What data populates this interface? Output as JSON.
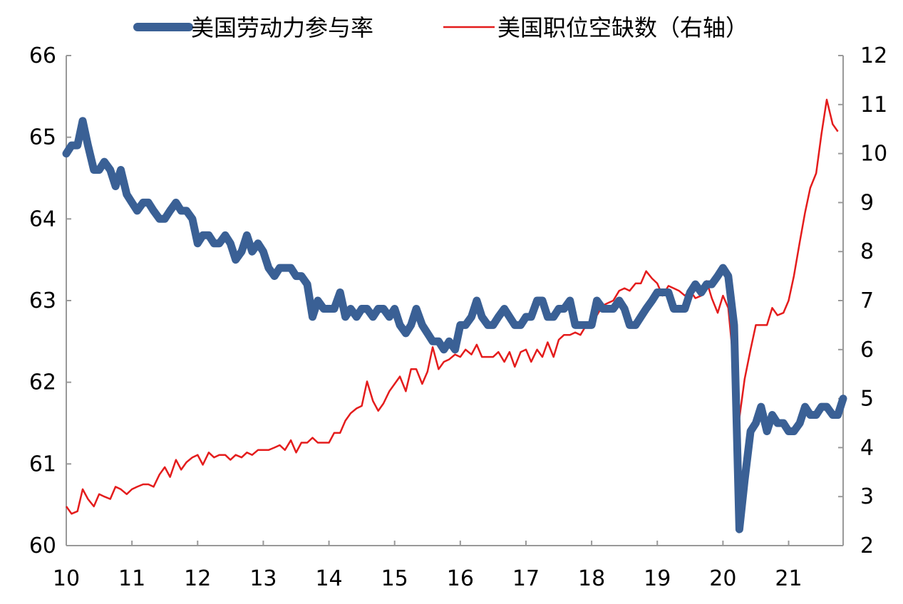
{
  "chart_data": {
    "type": "line",
    "title": "",
    "legend": {
      "position": "top"
    },
    "x_axis": {
      "range": [
        10,
        21.83
      ],
      "ticks": [
        "10",
        "11",
        "12",
        "13",
        "14",
        "15",
        "16",
        "17",
        "18",
        "19",
        "20",
        "21"
      ]
    },
    "y_left": {
      "range": [
        60,
        66
      ],
      "ticks": [
        "60",
        "61",
        "62",
        "63",
        "64",
        "65",
        "66"
      ]
    },
    "y_right": {
      "range": [
        2,
        12
      ],
      "ticks": [
        "2",
        "3",
        "4",
        "5",
        "6",
        "7",
        "8",
        "9",
        "10",
        "11",
        "12"
      ]
    },
    "grid": false,
    "series": [
      {
        "name": "美国劳动力参与率",
        "axis": "left",
        "color": "#3A6095",
        "points": [
          [
            10.0,
            64.8
          ],
          [
            10.08,
            64.9
          ],
          [
            10.17,
            64.9
          ],
          [
            10.25,
            65.2
          ],
          [
            10.33,
            64.9
          ],
          [
            10.42,
            64.6
          ],
          [
            10.5,
            64.6
          ],
          [
            10.58,
            64.7
          ],
          [
            10.67,
            64.6
          ],
          [
            10.75,
            64.4
          ],
          [
            10.83,
            64.6
          ],
          [
            10.92,
            64.3
          ],
          [
            11.0,
            64.2
          ],
          [
            11.08,
            64.1
          ],
          [
            11.17,
            64.2
          ],
          [
            11.25,
            64.2
          ],
          [
            11.33,
            64.1
          ],
          [
            11.42,
            64.0
          ],
          [
            11.5,
            64.0
          ],
          [
            11.58,
            64.1
          ],
          [
            11.67,
            64.2
          ],
          [
            11.75,
            64.1
          ],
          [
            11.83,
            64.1
          ],
          [
            11.92,
            64.0
          ],
          [
            12.0,
            63.7
          ],
          [
            12.08,
            63.8
          ],
          [
            12.17,
            63.8
          ],
          [
            12.25,
            63.7
          ],
          [
            12.33,
            63.7
          ],
          [
            12.42,
            63.8
          ],
          [
            12.5,
            63.7
          ],
          [
            12.58,
            63.5
          ],
          [
            12.67,
            63.6
          ],
          [
            12.75,
            63.8
          ],
          [
            12.83,
            63.6
          ],
          [
            12.92,
            63.7
          ],
          [
            13.0,
            63.6
          ],
          [
            13.08,
            63.4
          ],
          [
            13.17,
            63.3
          ],
          [
            13.25,
            63.4
          ],
          [
            13.33,
            63.4
          ],
          [
            13.42,
            63.4
          ],
          [
            13.5,
            63.3
          ],
          [
            13.58,
            63.3
          ],
          [
            13.67,
            63.2
          ],
          [
            13.75,
            62.8
          ],
          [
            13.83,
            63.0
          ],
          [
            13.92,
            62.9
          ],
          [
            14.0,
            62.9
          ],
          [
            14.08,
            62.9
          ],
          [
            14.17,
            63.1
          ],
          [
            14.25,
            62.8
          ],
          [
            14.33,
            62.9
          ],
          [
            14.42,
            62.8
          ],
          [
            14.5,
            62.9
          ],
          [
            14.58,
            62.9
          ],
          [
            14.67,
            62.8
          ],
          [
            14.75,
            62.9
          ],
          [
            14.83,
            62.9
          ],
          [
            14.92,
            62.8
          ],
          [
            15.0,
            62.9
          ],
          [
            15.08,
            62.7
          ],
          [
            15.17,
            62.6
          ],
          [
            15.25,
            62.7
          ],
          [
            15.33,
            62.9
          ],
          [
            15.42,
            62.7
          ],
          [
            15.5,
            62.6
          ],
          [
            15.58,
            62.5
          ],
          [
            15.67,
            62.5
          ],
          [
            15.75,
            62.4
          ],
          [
            15.83,
            62.5
          ],
          [
            15.92,
            62.4
          ],
          [
            16.0,
            62.7
          ],
          [
            16.08,
            62.7
          ],
          [
            16.17,
            62.8
          ],
          [
            16.25,
            63.0
          ],
          [
            16.33,
            62.8
          ],
          [
            16.42,
            62.7
          ],
          [
            16.5,
            62.7
          ],
          [
            16.58,
            62.8
          ],
          [
            16.67,
            62.9
          ],
          [
            16.75,
            62.8
          ],
          [
            16.83,
            62.7
          ],
          [
            16.92,
            62.7
          ],
          [
            17.0,
            62.8
          ],
          [
            17.08,
            62.8
          ],
          [
            17.17,
            63.0
          ],
          [
            17.25,
            63.0
          ],
          [
            17.33,
            62.8
          ],
          [
            17.42,
            62.8
          ],
          [
            17.5,
            62.9
          ],
          [
            17.58,
            62.9
          ],
          [
            17.67,
            63.0
          ],
          [
            17.75,
            62.7
          ],
          [
            17.83,
            62.7
          ],
          [
            17.92,
            62.7
          ],
          [
            18.0,
            62.7
          ],
          [
            18.08,
            63.0
          ],
          [
            18.17,
            62.9
          ],
          [
            18.25,
            62.9
          ],
          [
            18.33,
            62.9
          ],
          [
            18.42,
            63.0
          ],
          [
            18.5,
            62.9
          ],
          [
            18.58,
            62.7
          ],
          [
            18.67,
            62.7
          ],
          [
            18.75,
            62.8
          ],
          [
            18.83,
            62.9
          ],
          [
            18.92,
            63.0
          ],
          [
            19.0,
            63.1
          ],
          [
            19.08,
            63.1
          ],
          [
            19.17,
            63.1
          ],
          [
            19.25,
            62.9
          ],
          [
            19.33,
            62.9
          ],
          [
            19.42,
            62.9
          ],
          [
            19.5,
            63.1
          ],
          [
            19.58,
            63.2
          ],
          [
            19.67,
            63.1
          ],
          [
            19.75,
            63.2
          ],
          [
            19.83,
            63.2
          ],
          [
            19.92,
            63.3
          ],
          [
            20.0,
            63.4
          ],
          [
            20.08,
            63.3
          ],
          [
            20.17,
            62.7
          ],
          [
            20.25,
            60.2
          ],
          [
            20.33,
            60.8
          ],
          [
            20.42,
            61.4
          ],
          [
            20.5,
            61.5
          ],
          [
            20.58,
            61.7
          ],
          [
            20.67,
            61.4
          ],
          [
            20.75,
            61.6
          ],
          [
            20.83,
            61.5
          ],
          [
            20.92,
            61.5
          ],
          [
            21.0,
            61.4
          ],
          [
            21.08,
            61.4
          ],
          [
            21.17,
            61.5
          ],
          [
            21.25,
            61.7
          ],
          [
            21.33,
            61.6
          ],
          [
            21.42,
            61.6
          ],
          [
            21.5,
            61.7
          ],
          [
            21.58,
            61.7
          ],
          [
            21.67,
            61.6
          ],
          [
            21.75,
            61.6
          ],
          [
            21.83,
            61.8
          ]
        ]
      },
      {
        "name": "美国职位空缺数（右轴）",
        "axis": "right",
        "color": "#E41C1C",
        "points": [
          [
            10.0,
            2.8
          ],
          [
            10.08,
            2.65
          ],
          [
            10.17,
            2.7
          ],
          [
            10.25,
            3.15
          ],
          [
            10.33,
            2.95
          ],
          [
            10.42,
            2.8
          ],
          [
            10.5,
            3.05
          ],
          [
            10.58,
            3.0
          ],
          [
            10.67,
            2.95
          ],
          [
            10.75,
            3.2
          ],
          [
            10.83,
            3.15
          ],
          [
            10.92,
            3.05
          ],
          [
            11.0,
            3.15
          ],
          [
            11.08,
            3.2
          ],
          [
            11.17,
            3.25
          ],
          [
            11.25,
            3.25
          ],
          [
            11.33,
            3.2
          ],
          [
            11.42,
            3.45
          ],
          [
            11.5,
            3.6
          ],
          [
            11.58,
            3.4
          ],
          [
            11.67,
            3.75
          ],
          [
            11.75,
            3.55
          ],
          [
            11.83,
            3.7
          ],
          [
            11.92,
            3.8
          ],
          [
            12.0,
            3.85
          ],
          [
            12.08,
            3.65
          ],
          [
            12.17,
            3.9
          ],
          [
            12.25,
            3.8
          ],
          [
            12.33,
            3.85
          ],
          [
            12.42,
            3.85
          ],
          [
            12.5,
            3.75
          ],
          [
            12.58,
            3.85
          ],
          [
            12.67,
            3.8
          ],
          [
            12.75,
            3.9
          ],
          [
            12.83,
            3.85
          ],
          [
            12.92,
            3.95
          ],
          [
            13.0,
            3.95
          ],
          [
            13.08,
            3.95
          ],
          [
            13.17,
            4.0
          ],
          [
            13.25,
            4.05
          ],
          [
            13.33,
            3.95
          ],
          [
            13.42,
            4.15
          ],
          [
            13.5,
            3.9
          ],
          [
            13.58,
            4.1
          ],
          [
            13.67,
            4.1
          ],
          [
            13.75,
            4.2
          ],
          [
            13.83,
            4.1
          ],
          [
            13.92,
            4.1
          ],
          [
            14.0,
            4.1
          ],
          [
            14.08,
            4.3
          ],
          [
            14.17,
            4.3
          ],
          [
            14.25,
            4.55
          ],
          [
            14.33,
            4.7
          ],
          [
            14.42,
            4.8
          ],
          [
            14.5,
            4.85
          ],
          [
            14.58,
            5.35
          ],
          [
            14.67,
            4.95
          ],
          [
            14.75,
            4.75
          ],
          [
            14.83,
            4.9
          ],
          [
            14.92,
            5.15
          ],
          [
            15.0,
            5.3
          ],
          [
            15.08,
            5.45
          ],
          [
            15.17,
            5.15
          ],
          [
            15.25,
            5.6
          ],
          [
            15.33,
            5.6
          ],
          [
            15.42,
            5.3
          ],
          [
            15.5,
            5.55
          ],
          [
            15.58,
            6.05
          ],
          [
            15.67,
            5.6
          ],
          [
            15.75,
            5.75
          ],
          [
            15.83,
            5.8
          ],
          [
            15.92,
            5.9
          ],
          [
            16.0,
            5.85
          ],
          [
            16.08,
            6.0
          ],
          [
            16.17,
            5.9
          ],
          [
            16.25,
            6.1
          ],
          [
            16.33,
            5.85
          ],
          [
            16.42,
            5.85
          ],
          [
            16.5,
            5.85
          ],
          [
            16.58,
            5.95
          ],
          [
            16.67,
            5.75
          ],
          [
            16.75,
            5.95
          ],
          [
            16.83,
            5.65
          ],
          [
            16.92,
            5.95
          ],
          [
            17.0,
            6.0
          ],
          [
            17.08,
            5.75
          ],
          [
            17.17,
            6.0
          ],
          [
            17.25,
            5.85
          ],
          [
            17.33,
            6.15
          ],
          [
            17.42,
            5.85
          ],
          [
            17.5,
            6.2
          ],
          [
            17.58,
            6.3
          ],
          [
            17.67,
            6.3
          ],
          [
            17.75,
            6.35
          ],
          [
            17.83,
            6.3
          ],
          [
            17.92,
            6.5
          ],
          [
            18.0,
            6.6
          ],
          [
            18.08,
            6.7
          ],
          [
            18.17,
            6.9
          ],
          [
            18.25,
            6.95
          ],
          [
            18.33,
            7.0
          ],
          [
            18.42,
            7.2
          ],
          [
            18.5,
            7.25
          ],
          [
            18.58,
            7.2
          ],
          [
            18.67,
            7.35
          ],
          [
            18.75,
            7.35
          ],
          [
            18.83,
            7.6
          ],
          [
            18.92,
            7.45
          ],
          [
            19.0,
            7.35
          ],
          [
            19.08,
            7.1
          ],
          [
            19.17,
            7.3
          ],
          [
            19.25,
            7.25
          ],
          [
            19.33,
            7.2
          ],
          [
            19.42,
            7.1
          ],
          [
            19.5,
            7.2
          ],
          [
            19.58,
            7.05
          ],
          [
            19.67,
            7.1
          ],
          [
            19.75,
            7.4
          ],
          [
            19.83,
            7.05
          ],
          [
            19.92,
            6.75
          ],
          [
            20.0,
            7.1
          ],
          [
            20.08,
            6.85
          ],
          [
            20.17,
            5.6
          ],
          [
            20.25,
            4.6
          ],
          [
            20.33,
            5.4
          ],
          [
            20.42,
            6.0
          ],
          [
            20.5,
            6.5
          ],
          [
            20.58,
            6.5
          ],
          [
            20.67,
            6.5
          ],
          [
            20.75,
            6.85
          ],
          [
            20.83,
            6.7
          ],
          [
            20.92,
            6.75
          ],
          [
            21.0,
            7.0
          ],
          [
            21.08,
            7.5
          ],
          [
            21.17,
            8.2
          ],
          [
            21.25,
            8.8
          ],
          [
            21.33,
            9.3
          ],
          [
            21.42,
            9.6
          ],
          [
            21.5,
            10.4
          ],
          [
            21.58,
            11.1
          ],
          [
            21.67,
            10.6
          ],
          [
            21.75,
            10.45
          ]
        ]
      }
    ]
  }
}
